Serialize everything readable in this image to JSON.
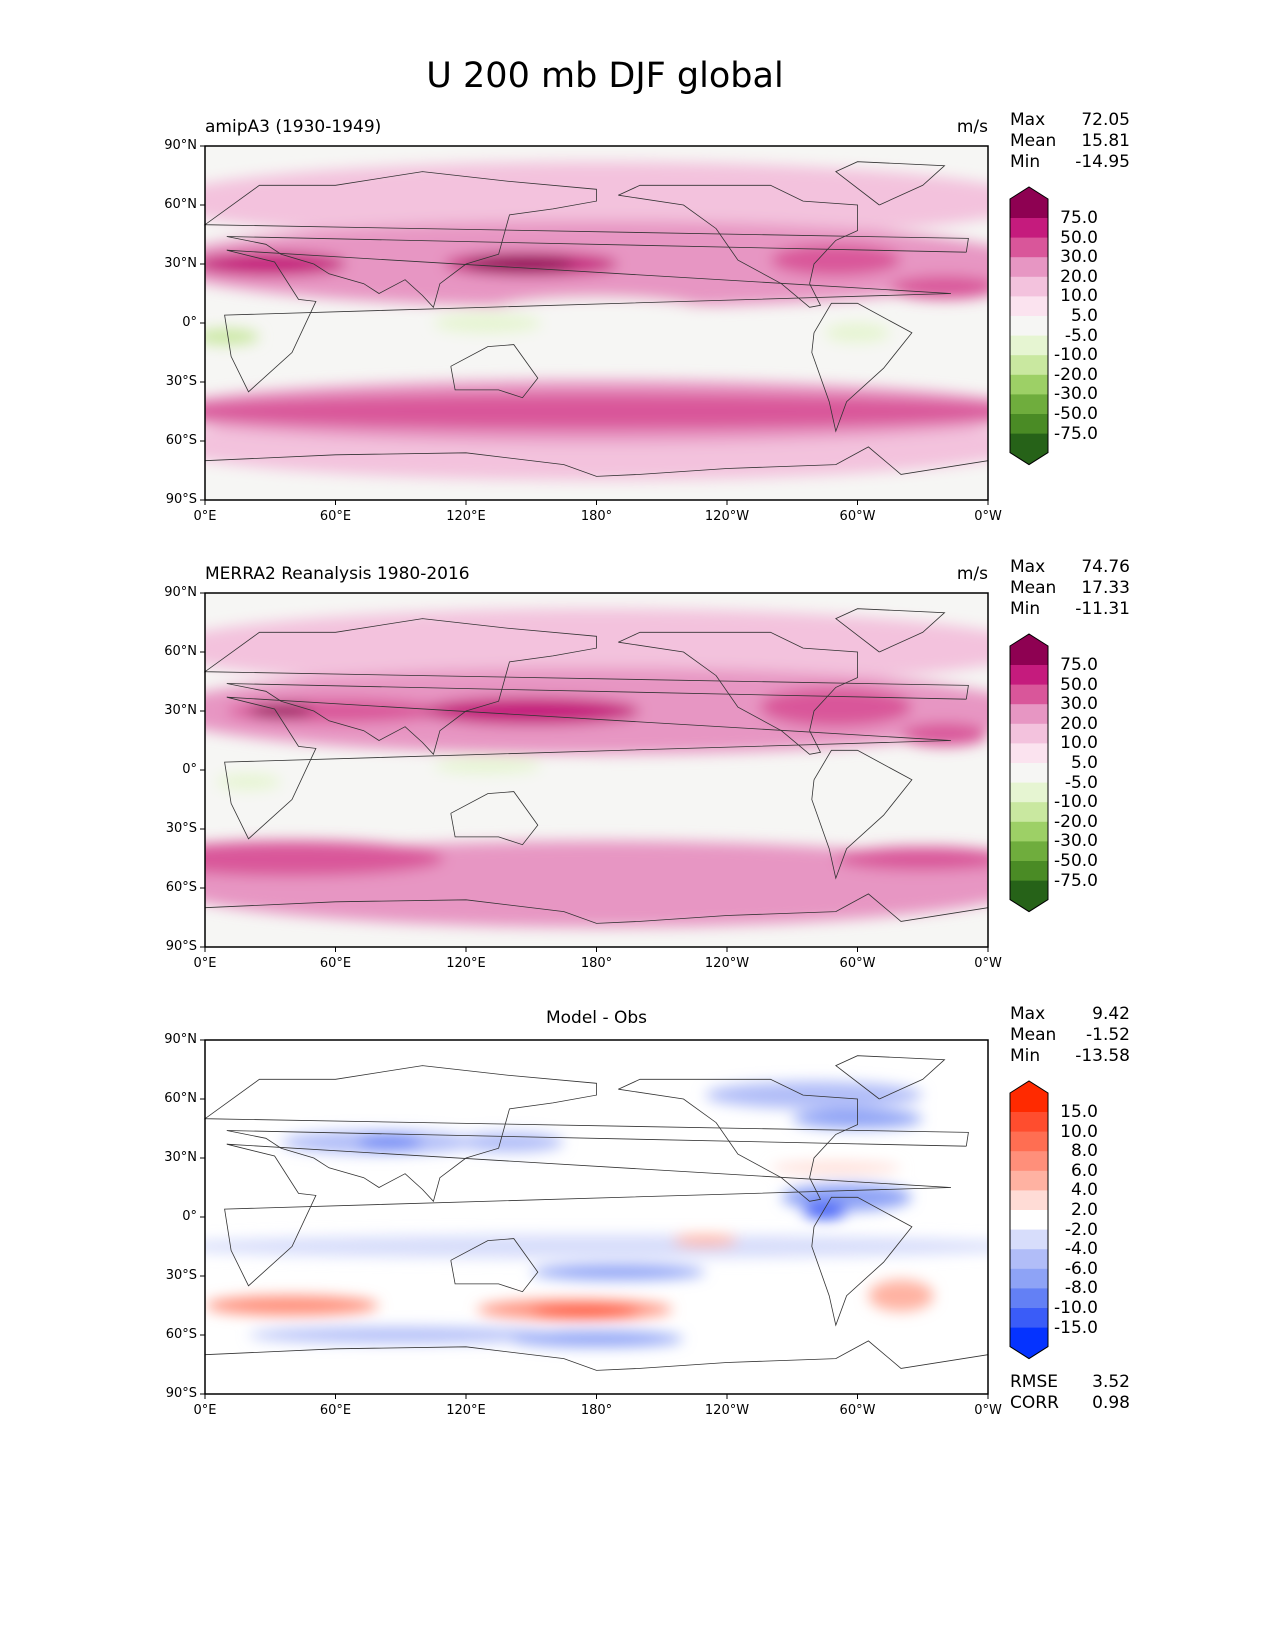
{
  "figure_title": "U 200 mb DJF global",
  "lat_ticks": [
    "90°N",
    "60°N",
    "30°N",
    "0°",
    "30°S",
    "60°S",
    "90°S"
  ],
  "lon_ticks": [
    "0°E",
    "60°E",
    "120°E",
    "180°",
    "120°W",
    "60°W",
    "0°W"
  ],
  "panels": [
    {
      "title_left": "amipA3 (1930-1949)",
      "units": "m/s",
      "stats": [
        {
          "label": "Max",
          "value": "72.05"
        },
        {
          "label": "Mean",
          "value": "15.81"
        },
        {
          "label": "Min",
          "value": "-14.95"
        }
      ],
      "colorbar": {
        "levels": [
          "75.0",
          "50.0",
          "30.0",
          "20.0",
          "10.0",
          "5.0",
          "-5.0",
          "-10.0",
          "-20.0",
          "-30.0",
          "-50.0",
          "-75.0"
        ],
        "colors": [
          "#8e0152",
          "#c51b7d",
          "#d9569a",
          "#e796c3",
          "#f3c2dd",
          "#fbe3ef",
          "#f6f6f4",
          "#e6f5d2",
          "#c9e8a0",
          "#9dd066",
          "#6fad3d",
          "#4a8b25",
          "#266218"
        ]
      }
    },
    {
      "title_left": "MERRA2 Reanalysis 1980-2016",
      "units": "m/s",
      "stats": [
        {
          "label": "Max",
          "value": "74.76"
        },
        {
          "label": "Mean",
          "value": "17.33"
        },
        {
          "label": "Min",
          "value": "-11.31"
        }
      ],
      "colorbar": {
        "levels": [
          "75.0",
          "50.0",
          "30.0",
          "20.0",
          "10.0",
          "5.0",
          "-5.0",
          "-10.0",
          "-20.0",
          "-30.0",
          "-50.0",
          "-75.0"
        ],
        "colors": [
          "#8e0152",
          "#c51b7d",
          "#d9569a",
          "#e796c3",
          "#f3c2dd",
          "#fbe3ef",
          "#f6f6f4",
          "#e6f5d2",
          "#c9e8a0",
          "#9dd066",
          "#6fad3d",
          "#4a8b25",
          "#266218"
        ]
      }
    },
    {
      "title_center": "Model - Obs",
      "stats": [
        {
          "label": "Max",
          "value": "9.42"
        },
        {
          "label": "Mean",
          "value": "-1.52"
        },
        {
          "label": "Min",
          "value": "-13.58"
        }
      ],
      "colorbar": {
        "levels": [
          "15.0",
          "10.0",
          "8.0",
          "6.0",
          "4.0",
          "2.0",
          "-2.0",
          "-4.0",
          "-6.0",
          "-8.0",
          "-10.0",
          "-15.0"
        ],
        "colors": [
          "#ff2a00",
          "#ff4d2e",
          "#ff6e52",
          "#ff8f7a",
          "#ffb2a2",
          "#ffdcd6",
          "#ffffff",
          "#d7ddfb",
          "#b1bdf8",
          "#8ea3f6",
          "#6380f5",
          "#3a5cf8",
          "#0533ff"
        ]
      },
      "metrics": [
        {
          "label": "RMSE",
          "value": "3.52"
        },
        {
          "label": "CORR",
          "value": "0.98"
        }
      ]
    }
  ]
}
